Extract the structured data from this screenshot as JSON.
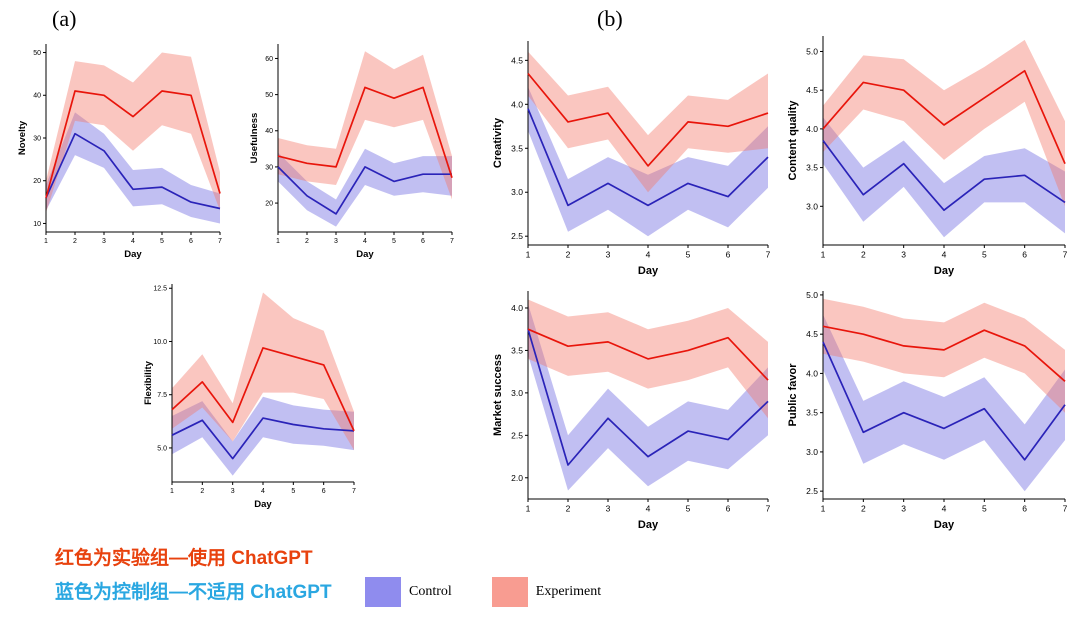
{
  "panel_a_label": "(a)",
  "panel_b_label": "(b)",
  "annotations": {
    "red_note": "红色为实验组—使用 ChatGPT",
    "red_note_color": "#e8420e",
    "blue_note": "蓝色为控制组—不适用 ChatGPT",
    "blue_note_color": "#2aa7e1"
  },
  "legend": {
    "control_label": "Control",
    "control_color": "#8f8cee",
    "experiment_label": "Experiment",
    "experiment_color": "#f89c91"
  },
  "colors": {
    "Control": {
      "line": "#2a23b8",
      "band": "#6b66e0"
    },
    "Experiment": {
      "line": "#e8150b",
      "band": "#f4766a"
    }
  },
  "chart_data": [
    {
      "type": "line",
      "title": "",
      "xlabel": "Day",
      "ylabel": "Novelty",
      "x": [
        1,
        2,
        3,
        4,
        5,
        6,
        7
      ],
      "ylim": [
        8,
        52
      ],
      "yticks": [
        10,
        20,
        30,
        40,
        50
      ],
      "tick_decimals": 0,
      "grid": false,
      "legend_position": "none",
      "series": [
        {
          "name": "Control",
          "values": [
            16,
            31,
            27,
            18,
            18.5,
            15,
            13.5
          ],
          "upper": [
            19,
            36,
            31,
            22.5,
            23,
            19,
            17
          ],
          "lower": [
            13,
            26,
            23,
            14,
            14.5,
            11.5,
            10
          ]
        },
        {
          "name": "Experiment",
          "values": [
            16,
            41,
            40,
            35,
            41,
            40,
            17
          ],
          "upper": [
            20,
            48,
            47,
            43,
            50,
            49,
            22
          ],
          "lower": [
            12.5,
            34,
            33,
            27,
            33,
            31,
            13
          ]
        }
      ]
    },
    {
      "type": "line",
      "title": "",
      "xlabel": "Day",
      "ylabel": "Usefulness",
      "x": [
        1,
        2,
        3,
        4,
        5,
        6,
        7
      ],
      "ylim": [
        12,
        64
      ],
      "yticks": [
        20,
        30,
        40,
        50,
        60
      ],
      "tick_decimals": 0,
      "grid": false,
      "legend_position": "none",
      "series": [
        {
          "name": "Control",
          "values": [
            30,
            22,
            17,
            30,
            26,
            28,
            28
          ],
          "upper": [
            34,
            26,
            21,
            35,
            31,
            33,
            33
          ],
          "lower": [
            26,
            18,
            13.5,
            25,
            22,
            23,
            22
          ]
        },
        {
          "name": "Experiment",
          "values": [
            33,
            31,
            30,
            52,
            49,
            52,
            27
          ],
          "upper": [
            38,
            36,
            35,
            62,
            57,
            61,
            33
          ],
          "lower": [
            28,
            26,
            25,
            43,
            41,
            43,
            21
          ]
        }
      ]
    },
    {
      "type": "line",
      "title": "",
      "xlabel": "Day",
      "ylabel": "Flexibility",
      "x": [
        1,
        2,
        3,
        4,
        5,
        6,
        7
      ],
      "ylim": [
        3.4,
        12.7
      ],
      "yticks": [
        5,
        7.5,
        10,
        12.5
      ],
      "tick_decimals": 1,
      "grid": false,
      "legend_position": "none",
      "series": [
        {
          "name": "Control",
          "values": [
            5.6,
            6.3,
            4.5,
            6.4,
            6.1,
            5.9,
            5.8
          ],
          "upper": [
            6.5,
            7.2,
            5.3,
            7.4,
            7.0,
            6.8,
            6.7
          ],
          "lower": [
            4.7,
            5.5,
            3.7,
            5.5,
            5.2,
            5.1,
            4.9
          ]
        },
        {
          "name": "Experiment",
          "values": [
            6.8,
            8.1,
            6.2,
            9.7,
            9.3,
            8.9,
            5.8
          ],
          "upper": [
            7.8,
            9.4,
            7.1,
            12.3,
            11.1,
            10.5,
            6.7
          ],
          "lower": [
            5.9,
            6.9,
            5.3,
            7.6,
            7.6,
            7.3,
            4.9
          ]
        }
      ]
    },
    {
      "type": "line",
      "title": "",
      "xlabel": "Day",
      "ylabel": "Creativity",
      "x": [
        1,
        2,
        3,
        4,
        5,
        6,
        7
      ],
      "ylim": [
        2.4,
        4.72
      ],
      "yticks": [
        2.5,
        3.0,
        3.5,
        4.0,
        4.5
      ],
      "tick_decimals": 1,
      "grid": false,
      "legend_position": "none",
      "series": [
        {
          "name": "Control",
          "values": [
            3.95,
            2.85,
            3.1,
            2.85,
            3.1,
            2.95,
            3.4
          ],
          "upper": [
            4.2,
            3.15,
            3.4,
            3.2,
            3.4,
            3.3,
            3.75
          ],
          "lower": [
            3.7,
            2.55,
            2.8,
            2.5,
            2.8,
            2.6,
            3.05
          ]
        },
        {
          "name": "Experiment",
          "values": [
            4.35,
            3.8,
            3.9,
            3.3,
            3.8,
            3.75,
            3.9
          ],
          "upper": [
            4.6,
            4.1,
            4.2,
            3.65,
            4.1,
            4.05,
            4.35
          ],
          "lower": [
            4.1,
            3.5,
            3.6,
            3.0,
            3.5,
            3.45,
            3.5
          ]
        }
      ]
    },
    {
      "type": "line",
      "title": "",
      "xlabel": "Day",
      "ylabel": "Content quality",
      "x": [
        1,
        2,
        3,
        4,
        5,
        6,
        7
      ],
      "ylim": [
        2.5,
        5.2
      ],
      "yticks": [
        3.0,
        3.5,
        4.0,
        4.5,
        5.0
      ],
      "tick_decimals": 1,
      "grid": false,
      "legend_position": "none",
      "series": [
        {
          "name": "Control",
          "values": [
            3.85,
            3.15,
            3.55,
            2.95,
            3.35,
            3.4,
            3.05
          ],
          "upper": [
            4.15,
            3.5,
            3.85,
            3.3,
            3.65,
            3.75,
            3.45
          ],
          "lower": [
            3.55,
            2.8,
            3.25,
            2.6,
            3.05,
            3.05,
            2.65
          ]
        },
        {
          "name": "Experiment",
          "values": [
            4.0,
            4.6,
            4.5,
            4.05,
            4.4,
            4.75,
            3.55
          ],
          "upper": [
            4.3,
            4.95,
            4.9,
            4.5,
            4.8,
            5.15,
            4.1
          ],
          "lower": [
            3.7,
            4.25,
            4.1,
            3.6,
            4.0,
            4.35,
            3.0
          ]
        }
      ]
    },
    {
      "type": "line",
      "title": "",
      "xlabel": "Day",
      "ylabel": "Market success",
      "x": [
        1,
        2,
        3,
        4,
        5,
        6,
        7
      ],
      "ylim": [
        1.75,
        4.2
      ],
      "yticks": [
        2.0,
        2.5,
        3.0,
        3.5,
        4.0
      ],
      "tick_decimals": 1,
      "grid": false,
      "legend_position": "none",
      "series": [
        {
          "name": "Control",
          "values": [
            3.75,
            2.15,
            2.7,
            2.25,
            2.55,
            2.45,
            2.9
          ],
          "upper": [
            4.05,
            2.5,
            3.05,
            2.6,
            2.9,
            2.8,
            3.3
          ],
          "lower": [
            3.45,
            1.85,
            2.35,
            1.9,
            2.2,
            2.1,
            2.5
          ]
        },
        {
          "name": "Experiment",
          "values": [
            3.75,
            3.55,
            3.6,
            3.4,
            3.5,
            3.65,
            3.15
          ],
          "upper": [
            4.1,
            3.9,
            3.95,
            3.75,
            3.85,
            4.0,
            3.6
          ],
          "lower": [
            3.4,
            3.2,
            3.25,
            3.05,
            3.15,
            3.3,
            2.7
          ]
        }
      ]
    },
    {
      "type": "line",
      "title": "",
      "xlabel": "Day",
      "ylabel": "Public favor",
      "x": [
        1,
        2,
        3,
        4,
        5,
        6,
        7
      ],
      "ylim": [
        2.4,
        5.05
      ],
      "yticks": [
        2.5,
        3.0,
        3.5,
        4.0,
        4.5,
        5.0
      ],
      "tick_decimals": 1,
      "grid": false,
      "legend_position": "none",
      "series": [
        {
          "name": "Control",
          "values": [
            4.4,
            3.25,
            3.5,
            3.3,
            3.55,
            2.9,
            3.6
          ],
          "upper": [
            4.75,
            3.65,
            3.9,
            3.7,
            3.95,
            3.35,
            4.05
          ],
          "lower": [
            4.05,
            2.85,
            3.1,
            2.9,
            3.15,
            2.5,
            3.15
          ]
        },
        {
          "name": "Experiment",
          "values": [
            4.6,
            4.5,
            4.35,
            4.3,
            4.55,
            4.35,
            3.9
          ],
          "upper": [
            4.95,
            4.85,
            4.7,
            4.65,
            4.9,
            4.7,
            4.3
          ],
          "lower": [
            4.25,
            4.15,
            4.0,
            3.95,
            4.2,
            4.0,
            3.5
          ]
        }
      ]
    }
  ]
}
